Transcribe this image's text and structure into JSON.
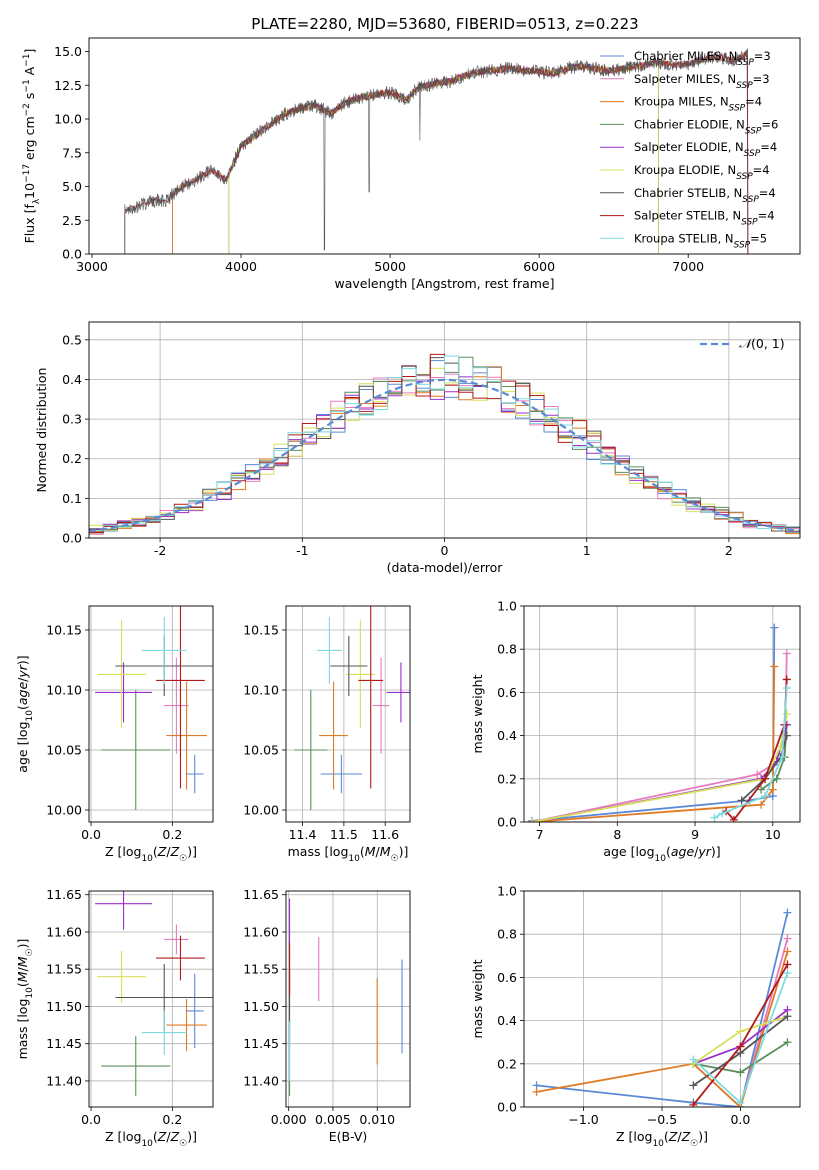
{
  "figure_title": "PLATE=2280, MJD=53680, FIBERID=0513, z=0.223",
  "colors": {
    "ChabrierMILES": "#5b8ad6",
    "SalpeterMILES": "#e87bbf",
    "KroupaMILES": "#e07b25",
    "ChabrierELODIE": "#5a8f5a",
    "SalpeterELODIE": "#9b30c9",
    "KroupaELODIE": "#d7e05a",
    "ChabrierSTELIB": "#555555",
    "SalpeterSTELIB": "#b01a1a",
    "KroupaSTELIB": "#7fdbe0"
  },
  "chart_data": [
    {
      "id": "spectrum",
      "type": "line",
      "title": "PLATE=2280, MJD=53680, FIBERID=0513, z=0.223",
      "xlabel": "wavelength [Angstrom, rest frame]",
      "ylabel": "Flux [f_λ 10^-17 erg cm^-2 s^-1 A^-1]",
      "xlim": [
        2980,
        7750
      ],
      "ylim": [
        0,
        16
      ],
      "xticks": [
        3000,
        4000,
        5000,
        6000,
        7000
      ],
      "yticks": [
        0.0,
        2.5,
        5.0,
        7.5,
        10.0,
        12.5,
        15.0
      ],
      "grid": false,
      "legend_position": "top-right",
      "legend": [
        {
          "label": "Chabrier MILES, N_SSP=3",
          "color_key": "ChabrierMILES"
        },
        {
          "label": "Salpeter MILES, N_SSP=3",
          "color_key": "SalpeterMILES"
        },
        {
          "label": "Kroupa MILES, N_SSP=4",
          "color_key": "KroupaMILES"
        },
        {
          "label": "Chabrier ELODIE, N_SSP=6",
          "color_key": "ChabrierELODIE"
        },
        {
          "label": "Salpeter ELODIE, N_SSP=4",
          "color_key": "SalpeterELODIE"
        },
        {
          "label": "Kroupa ELODIE, N_SSP=4",
          "color_key": "KroupaELODIE"
        },
        {
          "label": "Chabrier STELIB, N_SSP=4",
          "color_key": "ChabrierSTELIB"
        },
        {
          "label": "Salpeter STELIB, N_SSP=4",
          "color_key": "SalpeterSTELIB"
        },
        {
          "label": "Kroupa STELIB, N_SSP=5",
          "color_key": "KroupaSTELIB"
        }
      ],
      "data_flux_envelope": {
        "x": [
          3220,
          3300,
          3400,
          3500,
          3600,
          3700,
          3800,
          3900,
          4000,
          4100,
          4200,
          4300,
          4400,
          4500,
          4600,
          4700,
          4800,
          4900,
          5000,
          5100,
          5200,
          5300,
          5400,
          5500,
          5600,
          5700,
          5800,
          5900,
          6000,
          6100,
          6200,
          6300,
          6400,
          6500,
          6600,
          6700,
          6800,
          6900,
          7000,
          7100,
          7200,
          7300,
          7400
        ],
        "y": [
          3.2,
          3.5,
          3.9,
          4.0,
          5.0,
          5.5,
          6.2,
          5.5,
          8.0,
          8.8,
          9.6,
          10.4,
          10.8,
          11.0,
          10.4,
          11.2,
          11.6,
          11.8,
          12.0,
          11.4,
          12.4,
          12.6,
          12.8,
          13.2,
          13.5,
          13.6,
          13.8,
          13.6,
          13.5,
          13.4,
          13.8,
          13.9,
          13.7,
          13.6,
          13.8,
          14.0,
          14.2,
          14.0,
          14.1,
          14.4,
          14.6,
          14.3,
          14.8
        ]
      },
      "model_start_wavelength": {
        "ChabrierMILES": 3540,
        "SalpeterMILES": 3540,
        "KroupaMILES": 3540,
        "ChabrierELODIE": 3920,
        "SalpeterELODIE": 3920,
        "KroupaELODIE": 3920,
        "ChabrierSTELIB": 3220,
        "SalpeterSTELIB": 3220,
        "KroupaSTELIB": 3220
      },
      "model_end_wavelength": {
        "ChabrierMILES": 7400,
        "SalpeterMILES": 7400,
        "KroupaMILES": 7400,
        "ChabrierELODIE": 6800,
        "SalpeterELODIE": 6800,
        "KroupaELODIE": 6800,
        "ChabrierSTELIB": 7400,
        "SalpeterSTELIB": 7400,
        "KroupaSTELIB": 7400
      }
    },
    {
      "id": "residuals",
      "type": "line",
      "xlabel": "(data-model)/error",
      "ylabel": "Normed distribution",
      "xlim": [
        -2.5,
        2.5
      ],
      "ylim": [
        0,
        0.545
      ],
      "xticks": [
        -2,
        -1,
        0,
        1,
        2
      ],
      "yticks": [
        0.0,
        0.1,
        0.2,
        0.3,
        0.4,
        0.5
      ],
      "grid": true,
      "legend_position": "top-right",
      "legend": [
        {
          "label": "𝒩(0, 1)",
          "color_key": "ChabrierMILES",
          "style": "dashed"
        }
      ],
      "bin_width": 0.1,
      "series": [
        {
          "color_key": "ChabrierMILES",
          "seed": 1
        },
        {
          "color_key": "SalpeterMILES",
          "seed": 2
        },
        {
          "color_key": "KroupaMILES",
          "seed": 3
        },
        {
          "color_key": "ChabrierELODIE",
          "seed": 4
        },
        {
          "color_key": "SalpeterELODIE",
          "seed": 5
        },
        {
          "color_key": "KroupaELODIE",
          "seed": 6
        },
        {
          "color_key": "ChabrierSTELIB",
          "seed": 7
        },
        {
          "color_key": "SalpeterSTELIB",
          "seed": 8
        },
        {
          "color_key": "KroupaSTELIB",
          "seed": 9
        }
      ]
    },
    {
      "id": "age_vs_Z",
      "type": "scatter",
      "xlabel": "Z [log10(Z/Z☉)]",
      "ylabel": "age [log10(age/yr)]",
      "xlim": [
        -0.005,
        0.3
      ],
      "ylim": [
        9.99,
        10.17
      ],
      "xticks": [
        0.0,
        0.2
      ],
      "xticklabels": [
        "0.0",
        "0.2"
      ],
      "yticks": [
        10.0,
        10.05,
        10.1,
        10.15
      ],
      "yticklabels": [
        "10.00",
        "10.05",
        "10.10",
        "10.15"
      ],
      "grid": true,
      "points": [
        {
          "color_key": "ChabrierMILES",
          "x": 0.255,
          "xerr": 0.022,
          "y": 10.03,
          "yerr": 0.016
        },
        {
          "color_key": "SalpeterMILES",
          "x": 0.21,
          "xerr": 0.03,
          "y": 10.087,
          "yerr": 0.04
        },
        {
          "color_key": "KroupaMILES",
          "x": 0.235,
          "xerr": 0.05,
          "y": 10.062,
          "yerr": 0.045
        },
        {
          "color_key": "ChabrierELODIE",
          "x": 0.11,
          "xerr": 0.085,
          "y": 10.05,
          "yerr": 0.05
        },
        {
          "color_key": "SalpeterELODIE",
          "x": 0.08,
          "xerr": 0.07,
          "y": 10.098,
          "yerr": 0.025
        },
        {
          "color_key": "KroupaELODIE",
          "x": 0.075,
          "xerr": 0.06,
          "y": 10.113,
          "yerr": 0.045
        },
        {
          "color_key": "ChabrierSTELIB",
          "x": 0.18,
          "xerr": 0.12,
          "y": 10.12,
          "yerr": 0.025
        },
        {
          "color_key": "SalpeterSTELIB",
          "x": 0.22,
          "xerr": 0.06,
          "y": 10.108,
          "yerr": 0.09
        },
        {
          "color_key": "KroupaSTELIB",
          "x": 0.18,
          "xerr": 0.055,
          "y": 10.133,
          "yerr": 0.028
        }
      ]
    },
    {
      "id": "age_vs_mass",
      "type": "scatter",
      "xlabel": "mass [log10(M/M☉)]",
      "ylabel": "",
      "xlim": [
        11.36,
        11.66
      ],
      "ylim": [
        9.99,
        10.17
      ],
      "xticks": [
        11.4,
        11.5,
        11.6
      ],
      "xticklabels": [
        "11.4",
        "11.5",
        "11.6"
      ],
      "yticks": [
        10.0,
        10.05,
        10.1,
        10.15
      ],
      "yticklabels": [
        "10.00",
        "10.05",
        "10.10",
        "10.15"
      ],
      "grid": true,
      "points": [
        {
          "color_key": "ChabrierMILES",
          "x": 11.494,
          "xerr": 0.05,
          "y": 10.03,
          "yerr": 0.016
        },
        {
          "color_key": "SalpeterMILES",
          "x": 11.59,
          "xerr": 0.02,
          "y": 10.087,
          "yerr": 0.04
        },
        {
          "color_key": "KroupaMILES",
          "x": 11.475,
          "xerr": 0.035,
          "y": 10.062,
          "yerr": 0.045
        },
        {
          "color_key": "ChabrierELODIE",
          "x": 11.42,
          "xerr": 0.04,
          "y": 10.05,
          "yerr": 0.05
        },
        {
          "color_key": "SalpeterELODIE",
          "x": 11.638,
          "xerr": 0.035,
          "y": 10.098,
          "yerr": 0.025
        },
        {
          "color_key": "KroupaELODIE",
          "x": 11.54,
          "xerr": 0.035,
          "y": 10.113,
          "yerr": 0.045
        },
        {
          "color_key": "ChabrierSTELIB",
          "x": 11.512,
          "xerr": 0.045,
          "y": 10.12,
          "yerr": 0.025
        },
        {
          "color_key": "SalpeterSTELIB",
          "x": 11.565,
          "xerr": 0.03,
          "y": 10.108,
          "yerr": 0.09
        },
        {
          "color_key": "KroupaSTELIB",
          "x": 11.465,
          "xerr": 0.03,
          "y": 10.133,
          "yerr": 0.028
        }
      ]
    },
    {
      "id": "weight_vs_age",
      "type": "line",
      "xlabel": "age [log10(age/yr)]",
      "ylabel": "mass weight",
      "xlim": [
        6.8,
        10.35
      ],
      "ylim": [
        0,
        1
      ],
      "xticks": [
        7,
        8,
        9,
        10
      ],
      "xticklabels": [
        "7",
        "8",
        "9",
        "10"
      ],
      "yticks": [
        0.0,
        0.2,
        0.4,
        0.6,
        0.8,
        1.0
      ],
      "yticklabels": [
        "0.0",
        "0.2",
        "0.4",
        "0.6",
        "0.8",
        "1.0"
      ],
      "grid": true,
      "series": [
        {
          "color_key": "ChabrierMILES",
          "x": [
            6.9,
            9.7,
            10.0,
            10.02
          ],
          "y": [
            0.005,
            0.1,
            0.12,
            0.9
          ]
        },
        {
          "color_key": "SalpeterMILES",
          "x": [
            6.9,
            9.8,
            10.15,
            10.18
          ],
          "y": [
            0.0,
            0.22,
            0.3,
            0.78
          ]
        },
        {
          "color_key": "KroupaMILES",
          "x": [
            6.9,
            9.85,
            10.0,
            10.02
          ],
          "y": [
            0.0,
            0.08,
            0.15,
            0.72
          ]
        },
        {
          "color_key": "ChabrierELODIE",
          "x": [
            9.85,
            10.05,
            10.15,
            10.18
          ],
          "y": [
            0.15,
            0.2,
            0.3,
            0.45
          ]
        },
        {
          "color_key": "SalpeterELODIE",
          "x": [
            6.9,
            9.85,
            10.05,
            10.18
          ],
          "y": [
            0.0,
            0.2,
            0.28,
            0.45
          ]
        },
        {
          "color_key": "KroupaELODIE",
          "x": [
            6.9,
            9.9,
            10.1,
            10.18
          ],
          "y": [
            0.0,
            0.2,
            0.35,
            0.5
          ]
        },
        {
          "color_key": "ChabrierSTELIB",
          "x": [
            9.6,
            9.9,
            10.1,
            10.18
          ],
          "y": [
            0.1,
            0.2,
            0.3,
            0.4
          ]
        },
        {
          "color_key": "SalpeterSTELIB",
          "x": [
            9.4,
            9.5,
            9.9,
            10.15,
            10.18
          ],
          "y": [
            0.05,
            0.01,
            0.2,
            0.45,
            0.66
          ]
        },
        {
          "color_key": "KroupaSTELIB",
          "x": [
            9.25,
            9.35,
            9.9,
            10.12,
            10.18
          ],
          "y": [
            0.02,
            0.04,
            0.12,
            0.3,
            0.62
          ]
        }
      ]
    },
    {
      "id": "mass_vs_Z",
      "type": "scatter",
      "xlabel": "Z [log10(Z/Z☉)]",
      "ylabel": "mass [log10(M/M☉)]",
      "xlim": [
        -0.005,
        0.3
      ],
      "ylim": [
        11.365,
        11.655
      ],
      "xticks": [
        0.0,
        0.2
      ],
      "xticklabels": [
        "0.0",
        "0.2"
      ],
      "yticks": [
        11.4,
        11.45,
        11.5,
        11.55,
        11.6,
        11.65
      ],
      "yticklabels": [
        "11.40",
        "11.45",
        "11.50",
        "11.55",
        "11.60",
        "11.65"
      ],
      "grid": true,
      "points": [
        {
          "color_key": "ChabrierMILES",
          "x": 0.255,
          "xerr": 0.022,
          "y": 11.494,
          "yerr": 0.05
        },
        {
          "color_key": "SalpeterMILES",
          "x": 0.21,
          "xerr": 0.03,
          "y": 11.59,
          "yerr": 0.02
        },
        {
          "color_key": "KroupaMILES",
          "x": 0.235,
          "xerr": 0.05,
          "y": 11.475,
          "yerr": 0.035
        },
        {
          "color_key": "ChabrierELODIE",
          "x": 0.11,
          "xerr": 0.085,
          "y": 11.42,
          "yerr": 0.04
        },
        {
          "color_key": "SalpeterELODIE",
          "x": 0.08,
          "xerr": 0.07,
          "y": 11.638,
          "yerr": 0.035
        },
        {
          "color_key": "KroupaELODIE",
          "x": 0.075,
          "xerr": 0.06,
          "y": 11.54,
          "yerr": 0.035
        },
        {
          "color_key": "ChabrierSTELIB",
          "x": 0.18,
          "xerr": 0.12,
          "y": 11.512,
          "yerr": 0.045
        },
        {
          "color_key": "SalpeterSTELIB",
          "x": 0.22,
          "xerr": 0.06,
          "y": 11.565,
          "yerr": 0.03
        },
        {
          "color_key": "KroupaSTELIB",
          "x": 0.18,
          "xerr": 0.055,
          "y": 11.465,
          "yerr": 0.03
        }
      ]
    },
    {
      "id": "mass_vs_ebv",
      "type": "scatter",
      "xlabel": "E(B-V)",
      "ylabel": "",
      "xlim": [
        -0.0003,
        0.0137
      ],
      "ylim": [
        11.365,
        11.655
      ],
      "xticks": [
        0.0,
        0.005,
        0.01
      ],
      "xticklabels": [
        "0.000",
        "0.005",
        "0.010"
      ],
      "yticks": [
        11.4,
        11.45,
        11.5,
        11.55,
        11.6,
        11.65
      ],
      "yticklabels": [
        "11.40",
        "11.45",
        "11.50",
        "11.55",
        "11.60",
        "11.65"
      ],
      "grid": true,
      "points": [
        {
          "color_key": "ChabrierMILES",
          "x": 0.0128,
          "y": 11.5,
          "yerr": 0.063
        },
        {
          "color_key": "SalpeterMILES",
          "x": 0.0034,
          "y": 11.55,
          "yerr": 0.043
        },
        {
          "color_key": "KroupaMILES",
          "x": 0.01,
          "y": 11.48,
          "yerr": 0.058
        },
        {
          "color_key": "ChabrierELODIE",
          "x": 0.0001,
          "y": 11.43,
          "yerr": 0.05
        },
        {
          "color_key": "SalpeterELODIE",
          "x": 0.0001,
          "y": 11.6,
          "yerr": 0.045
        },
        {
          "color_key": "KroupaELODIE",
          "x": 0.0001,
          "y": 11.53,
          "yerr": 0.04
        },
        {
          "color_key": "ChabrierSTELIB",
          "x": 0.0001,
          "y": 11.5,
          "yerr": 0.05
        },
        {
          "color_key": "SalpeterSTELIB",
          "x": 0.0001,
          "y": 11.55,
          "yerr": 0.035
        },
        {
          "color_key": "KroupaSTELIB",
          "x": 0.0001,
          "y": 11.44,
          "yerr": 0.04
        }
      ]
    },
    {
      "id": "weight_vs_Z",
      "type": "line",
      "xlabel": "Z [log10(Z/Z☉)]",
      "ylabel": "mass weight",
      "xlim": [
        -1.38,
        0.38
      ],
      "ylim": [
        0,
        1
      ],
      "xticks": [
        -1.0,
        -0.5,
        0.0
      ],
      "xticklabels": [
        "−1.0",
        "−0.5",
        "0.0"
      ],
      "yticks": [
        0.0,
        0.2,
        0.4,
        0.6,
        0.8,
        1.0
      ],
      "yticklabels": [
        "0.0",
        "0.2",
        "0.4",
        "0.6",
        "0.8",
        "1.0"
      ],
      "grid": true,
      "series": [
        {
          "color_key": "ChabrierMILES",
          "x": [
            -1.3,
            -0.3,
            0.0,
            0.3
          ],
          "y": [
            0.1,
            0.02,
            0.0,
            0.9
          ]
        },
        {
          "color_key": "SalpeterMILES",
          "x": [
            -0.3,
            0.0,
            0.3
          ],
          "y": [
            0.2,
            0.0,
            0.78
          ]
        },
        {
          "color_key": "KroupaMILES",
          "x": [
            -1.3,
            -0.3,
            0.0,
            0.3
          ],
          "y": [
            0.07,
            0.2,
            0.0,
            0.72
          ]
        },
        {
          "color_key": "ChabrierELODIE",
          "x": [
            -0.3,
            0.0,
            0.3
          ],
          "y": [
            0.2,
            0.16,
            0.3
          ]
        },
        {
          "color_key": "SalpeterELODIE",
          "x": [
            -0.3,
            0.0,
            0.3
          ],
          "y": [
            0.2,
            0.28,
            0.45
          ]
        },
        {
          "color_key": "KroupaELODIE",
          "x": [
            -0.3,
            0.0,
            0.3
          ],
          "y": [
            0.2,
            0.35,
            0.42
          ]
        },
        {
          "color_key": "ChabrierSTELIB",
          "x": [
            -0.3,
            0.0,
            0.3
          ],
          "y": [
            0.1,
            0.25,
            0.42
          ]
        },
        {
          "color_key": "SalpeterSTELIB",
          "x": [
            -0.3,
            0.0,
            0.3
          ],
          "y": [
            0.01,
            0.28,
            0.66
          ]
        },
        {
          "color_key": "KroupaSTELIB",
          "x": [
            -0.3,
            0.0,
            0.3
          ],
          "y": [
            0.22,
            0.02,
            0.62
          ]
        }
      ]
    }
  ]
}
